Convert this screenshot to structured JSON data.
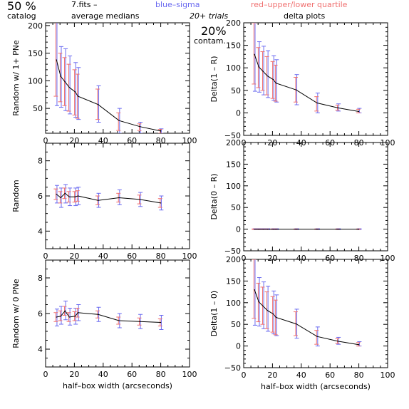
{
  "header": {
    "percent": "50 %",
    "catalog": "catalog",
    "fits": "7.fits  –",
    "medians": "average medians",
    "blue_sigma": "blue–sigma",
    "red_quartile": "red–upper/lower quartile",
    "trials": "20+ trials",
    "contam_pct": "20%",
    "contam": "contam.",
    "delta_plots": "delta plots"
  },
  "colors": {
    "sigma": "#6a6af0",
    "quartile": "#f07070",
    "line": "#000000"
  },
  "chart_data": [
    {
      "type": "line",
      "panel": "left-top",
      "xlabel": "",
      "ylabel": "Random w/ 1+ PNe",
      "xlim": [
        0,
        100
      ],
      "ylim": [
        5,
        205
      ],
      "xticks": [
        0,
        20,
        40,
        60,
        80,
        100
      ],
      "yticks": [
        50,
        100,
        150,
        200
      ],
      "x": [
        7.5,
        10.5,
        13.5,
        16.5,
        20.5,
        22.5,
        36.5,
        51.0,
        65.5,
        80.0
      ],
      "y": [
        138,
        108,
        98,
        88,
        80,
        72,
        57,
        28,
        17,
        9
      ],
      "sigma": [
        [
          55,
          220
        ],
        [
          52,
          162
        ],
        [
          46,
          158
        ],
        [
          40,
          145
        ],
        [
          34,
          133
        ],
        [
          30,
          124
        ],
        [
          25,
          91
        ],
        [
          5,
          50
        ],
        [
          5,
          25
        ],
        [
          5,
          13
        ]
      ],
      "quartile": [
        [
          72,
          210
        ],
        [
          62,
          150
        ],
        [
          55,
          142
        ],
        [
          45,
          130
        ],
        [
          38,
          120
        ],
        [
          32,
          112
        ],
        [
          30,
          85
        ],
        [
          10,
          42
        ],
        [
          10,
          22
        ],
        [
          5,
          12
        ]
      ]
    },
    {
      "type": "line",
      "panel": "left-middle",
      "xlabel": "",
      "ylabel": "Random",
      "xlim": [
        0,
        100
      ],
      "ylim": [
        3,
        9
      ],
      "xticks": [
        0,
        20,
        40,
        60,
        80,
        100
      ],
      "yticks": [
        4,
        6,
        8
      ],
      "x": [
        7.5,
        10.5,
        13.5,
        16.5,
        20.5,
        22.5,
        36.5,
        51.0,
        65.5,
        80.0
      ],
      "y": [
        6.1,
        5.9,
        6.15,
        5.95,
        5.95,
        6.0,
        5.75,
        5.9,
        5.8,
        5.6
      ],
      "sigma": [
        [
          5.6,
          6.6
        ],
        [
          5.35,
          6.45
        ],
        [
          5.6,
          6.65
        ],
        [
          5.45,
          6.45
        ],
        [
          5.45,
          6.45
        ],
        [
          5.5,
          6.5
        ],
        [
          5.35,
          6.15
        ],
        [
          5.5,
          6.35
        ],
        [
          5.4,
          6.2
        ],
        [
          5.2,
          6.0
        ]
      ],
      "quartile": [
        [
          5.8,
          6.4
        ],
        [
          5.6,
          6.25
        ],
        [
          5.85,
          6.45
        ],
        [
          5.65,
          6.25
        ],
        [
          5.65,
          6.25
        ],
        [
          5.7,
          6.3
        ],
        [
          5.5,
          6.0
        ],
        [
          5.65,
          6.15
        ],
        [
          5.55,
          6.05
        ],
        [
          5.35,
          5.85
        ]
      ]
    },
    {
      "type": "line",
      "panel": "left-bottom",
      "xlabel": "half–box width (arcseconds)",
      "ylabel": "Random w/ 0 PNe",
      "xlim": [
        0,
        100
      ],
      "ylim": [
        3,
        9
      ],
      "xticks": [
        0,
        20,
        40,
        60,
        80,
        100
      ],
      "yticks": [
        4,
        6,
        8
      ],
      "x": [
        7.5,
        10.5,
        13.5,
        16.5,
        20.5,
        22.5,
        36.5,
        51.0,
        65.5,
        80.0
      ],
      "y": [
        5.8,
        5.85,
        6.15,
        5.8,
        5.85,
        6.05,
        5.95,
        5.6,
        5.55,
        5.5
      ],
      "sigma": [
        [
          5.3,
          6.25
        ],
        [
          5.4,
          6.4
        ],
        [
          5.65,
          6.7
        ],
        [
          5.35,
          6.3
        ],
        [
          5.4,
          6.3
        ],
        [
          5.6,
          6.5
        ],
        [
          5.55,
          6.35
        ],
        [
          5.2,
          6.0
        ],
        [
          5.15,
          5.95
        ],
        [
          5.1,
          5.9
        ]
      ],
      "quartile": [
        [
          5.55,
          6.05
        ],
        [
          5.6,
          6.15
        ],
        [
          5.9,
          6.4
        ],
        [
          5.55,
          6.05
        ],
        [
          5.6,
          6.1
        ],
        [
          5.8,
          6.3
        ],
        [
          5.75,
          6.15
        ],
        [
          5.4,
          5.8
        ],
        [
          5.35,
          5.75
        ],
        [
          5.3,
          5.7
        ]
      ]
    },
    {
      "type": "line",
      "panel": "right-top",
      "xlabel": "",
      "ylabel": "Delta(1 – R)",
      "xlim": [
        0,
        100
      ],
      "ylim": [
        -50,
        200
      ],
      "xticks": [
        0,
        20,
        40,
        60,
        80,
        100
      ],
      "yticks": [
        -50,
        0,
        50,
        100,
        150,
        200
      ],
      "x": [
        7.5,
        10.5,
        13.5,
        16.5,
        20.5,
        22.5,
        36.5,
        51.0,
        65.5,
        80.0
      ],
      "y": [
        130,
        102,
        92,
        82,
        74,
        66,
        51,
        22,
        11,
        3
      ],
      "sigma": [
        [
          48,
          210
        ],
        [
          46,
          158
        ],
        [
          40,
          148
        ],
        [
          34,
          138
        ],
        [
          28,
          127
        ],
        [
          24,
          118
        ],
        [
          18,
          85
        ],
        [
          0,
          44
        ],
        [
          4,
          20
        ],
        [
          0,
          10
        ]
      ],
      "quartile": [
        [
          64,
          200
        ],
        [
          56,
          145
        ],
        [
          50,
          136
        ],
        [
          40,
          125
        ],
        [
          32,
          114
        ],
        [
          26,
          106
        ],
        [
          24,
          79
        ],
        [
          4,
          36
        ],
        [
          6,
          17
        ],
        [
          0,
          8
        ]
      ]
    },
    {
      "type": "line",
      "panel": "right-middle",
      "xlabel": "",
      "ylabel": "Delta(0 – R)",
      "xlim": [
        0,
        100
      ],
      "ylim": [
        -50,
        200
      ],
      "xticks": [
        0,
        20,
        40,
        60,
        80,
        100
      ],
      "yticks": [
        -50,
        0,
        50,
        100,
        150,
        200
      ],
      "x": [
        7.5,
        10.5,
        13.5,
        16.5,
        20.5,
        22.5,
        36.5,
        51.0,
        65.5,
        80.0
      ],
      "y": [
        0,
        0,
        0,
        0,
        0,
        0,
        0,
        0,
        0,
        0
      ],
      "sigma": [
        [
          -1,
          1
        ],
        [
          -1,
          1
        ],
        [
          -1,
          1
        ],
        [
          -1,
          1
        ],
        [
          -1,
          1
        ],
        [
          -1,
          1
        ],
        [
          -1,
          1
        ],
        [
          -1,
          1
        ],
        [
          -1,
          1
        ],
        [
          -1,
          1
        ]
      ],
      "quartile": [
        [
          -0.5,
          0.5
        ],
        [
          -0.5,
          0.5
        ],
        [
          -0.5,
          0.5
        ],
        [
          -0.5,
          0.5
        ],
        [
          -0.5,
          0.5
        ],
        [
          -0.5,
          0.5
        ],
        [
          -0.5,
          0.5
        ],
        [
          -0.5,
          0.5
        ],
        [
          -0.5,
          0.5
        ],
        [
          -0.5,
          0.5
        ]
      ]
    },
    {
      "type": "line",
      "panel": "right-bottom",
      "xlabel": "half–box width (arcseconds)",
      "ylabel": "Delta(1 – 0)",
      "xlim": [
        0,
        100
      ],
      "ylim": [
        -50,
        200
      ],
      "xticks": [
        0,
        20,
        40,
        60,
        80,
        100
      ],
      "yticks": [
        -50,
        0,
        50,
        100,
        150,
        200
      ],
      "x": [
        7.5,
        10.5,
        13.5,
        16.5,
        20.5,
        22.5,
        36.5,
        51.0,
        65.5,
        80.0
      ],
      "y": [
        130,
        102,
        92,
        82,
        74,
        66,
        51,
        22,
        11,
        3
      ],
      "sigma": [
        [
          48,
          210
        ],
        [
          46,
          158
        ],
        [
          40,
          148
        ],
        [
          34,
          138
        ],
        [
          28,
          127
        ],
        [
          24,
          118
        ],
        [
          18,
          85
        ],
        [
          0,
          44
        ],
        [
          4,
          20
        ],
        [
          0,
          10
        ]
      ],
      "quartile": [
        [
          64,
          200
        ],
        [
          56,
          145
        ],
        [
          50,
          136
        ],
        [
          40,
          125
        ],
        [
          32,
          114
        ],
        [
          26,
          106
        ],
        [
          24,
          79
        ],
        [
          4,
          36
        ],
        [
          6,
          17
        ],
        [
          0,
          8
        ]
      ]
    }
  ]
}
